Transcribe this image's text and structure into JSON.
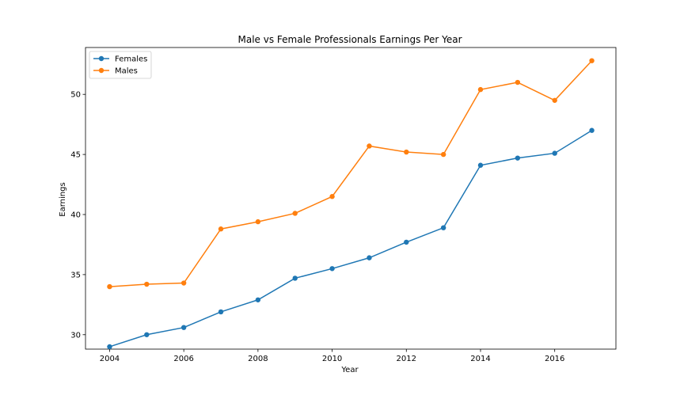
{
  "chart_data": {
    "type": "line",
    "title": "Male vs Female Professionals Earnings Per Year",
    "xlabel": "Year",
    "ylabel": "Earnings",
    "x": [
      2004,
      2005,
      2006,
      2007,
      2008,
      2009,
      2010,
      2011,
      2012,
      2013,
      2014,
      2015,
      2016,
      2017
    ],
    "xlim": [
      2003.35,
      2017.65
    ],
    "ylim": [
      28.8,
      53.9
    ],
    "xticks": [
      2004,
      2006,
      2008,
      2010,
      2012,
      2014,
      2016
    ],
    "yticks": [
      30,
      35,
      40,
      45,
      50
    ],
    "grid": false,
    "legend_position": "top-left",
    "series": [
      {
        "name": "Females",
        "color": "#1f77b4",
        "marker": "circle",
        "values": [
          29.0,
          30.0,
          30.6,
          31.9,
          32.9,
          34.7,
          35.5,
          36.4,
          37.7,
          38.9,
          44.1,
          44.7,
          45.1,
          47.0
        ]
      },
      {
        "name": "Males",
        "color": "#ff7f0e",
        "marker": "circle",
        "values": [
          34.0,
          34.2,
          34.3,
          38.8,
          39.4,
          40.1,
          41.5,
          45.7,
          45.2,
          45.0,
          50.4,
          51.0,
          49.5,
          52.8
        ]
      }
    ]
  }
}
